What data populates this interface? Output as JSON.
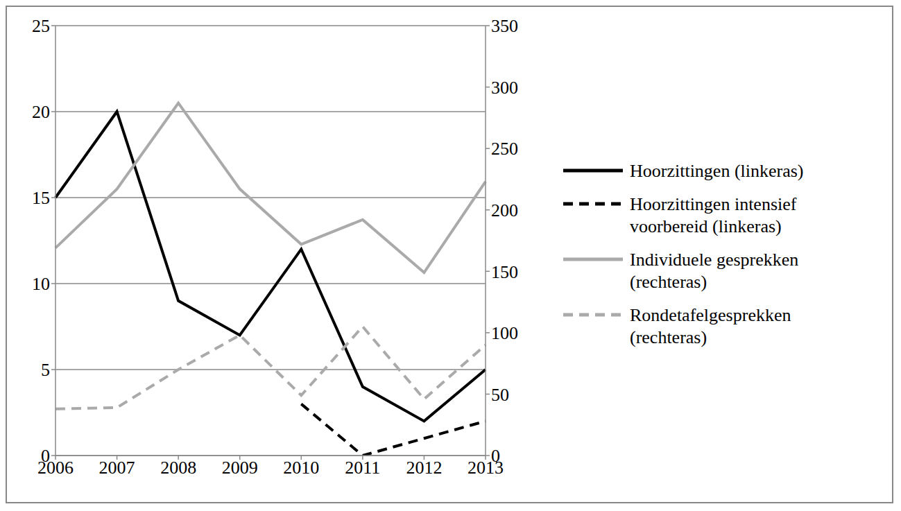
{
  "chart_data": {
    "type": "line",
    "categories": [
      "2006",
      "2007",
      "2008",
      "2009",
      "2010",
      "2011",
      "2012",
      "2013"
    ],
    "ylim": [
      0,
      25
    ],
    "yticks": [
      0,
      5,
      10,
      15,
      20,
      25
    ],
    "y2lim": [
      0,
      350
    ],
    "y2ticks": [
      0,
      50,
      100,
      150,
      200,
      250,
      300,
      350
    ],
    "grid": true,
    "legend": "right",
    "series": [
      {
        "name": "Hoorzittingen (linkeras)",
        "color": "#000000",
        "line_style": "solid",
        "values": [
          15,
          20,
          9,
          7,
          12,
          4,
          2,
          5
        ]
      },
      {
        "name": "Hoorzittingen intensief voorbereid (linkeras)",
        "color": "#000000",
        "line_style": "dashed",
        "values": [
          null,
          null,
          null,
          null,
          3,
          0,
          1,
          2
        ]
      },
      {
        "name": "Individuele gesprekken (rechteras)",
        "color": "#aaaaaa",
        "line_style": "solid",
        "axis": "y2",
        "values": [
          169,
          217,
          287,
          217,
          172,
          192,
          149,
          223
        ]
      },
      {
        "name": "Rondetafelgesprekken (rechteras)",
        "color": "#aaaaaa",
        "line_style": "dashed",
        "axis": "y2",
        "values": [
          38,
          39,
          70,
          98,
          49,
          105,
          46,
          90
        ]
      }
    ]
  }
}
